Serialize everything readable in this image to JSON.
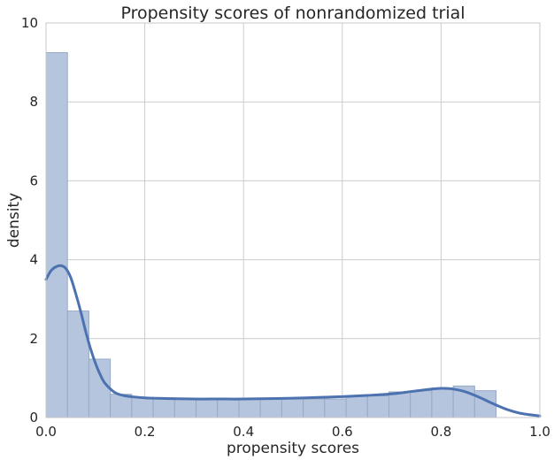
{
  "chart_data": {
    "type": "bar",
    "title": "Propensity scores of nonrandomized trial",
    "xlabel": "propensity scores",
    "ylabel": "density",
    "xlim": [
      0.0,
      1.0
    ],
    "ylim": [
      0,
      10
    ],
    "x_ticks": [
      "0.0",
      "0.2",
      "0.4",
      "0.6",
      "0.8",
      "1.0"
    ],
    "y_ticks": [
      "0",
      "2",
      "4",
      "6",
      "8",
      "10"
    ],
    "grid": true,
    "colors": {
      "bar_fill": "#b5c5de",
      "bar_edge": "#98a9c4",
      "kde_line": "#4c72b0",
      "grid": "#cccccc",
      "axis_frame": "#c8c8c8"
    },
    "histogram": {
      "bin_width": 0.0434,
      "bins_start": [
        0.0,
        0.0434,
        0.0868,
        0.1302,
        0.1736,
        0.217,
        0.2604,
        0.3038,
        0.3472,
        0.3906,
        0.434,
        0.4774,
        0.5208,
        0.5642,
        0.6076,
        0.651,
        0.6944,
        0.7378,
        0.7812,
        0.8246,
        0.868
      ],
      "values": [
        9.25,
        2.7,
        1.48,
        0.59,
        0.5,
        0.5,
        0.47,
        0.47,
        0.47,
        0.47,
        0.47,
        0.47,
        0.47,
        0.47,
        0.55,
        0.55,
        0.65,
        0.68,
        0.75,
        0.8,
        0.68
      ]
    },
    "kde": {
      "x": [
        0.0,
        0.01,
        0.02,
        0.03,
        0.04,
        0.05,
        0.06,
        0.07,
        0.08,
        0.09,
        0.1,
        0.11,
        0.12,
        0.14,
        0.16,
        0.18,
        0.2,
        0.22,
        0.25,
        0.3,
        0.35,
        0.4,
        0.45,
        0.5,
        0.55,
        0.6,
        0.65,
        0.7,
        0.74,
        0.78,
        0.8,
        0.82,
        0.85,
        0.88,
        0.9,
        0.93,
        0.96,
        1.0
      ],
      "y": [
        3.5,
        3.72,
        3.82,
        3.85,
        3.78,
        3.55,
        3.15,
        2.7,
        2.2,
        1.75,
        1.38,
        1.08,
        0.86,
        0.63,
        0.55,
        0.52,
        0.5,
        0.49,
        0.48,
        0.47,
        0.47,
        0.47,
        0.48,
        0.49,
        0.51,
        0.53,
        0.56,
        0.6,
        0.66,
        0.72,
        0.74,
        0.73,
        0.65,
        0.5,
        0.38,
        0.22,
        0.11,
        0.04
      ]
    }
  }
}
